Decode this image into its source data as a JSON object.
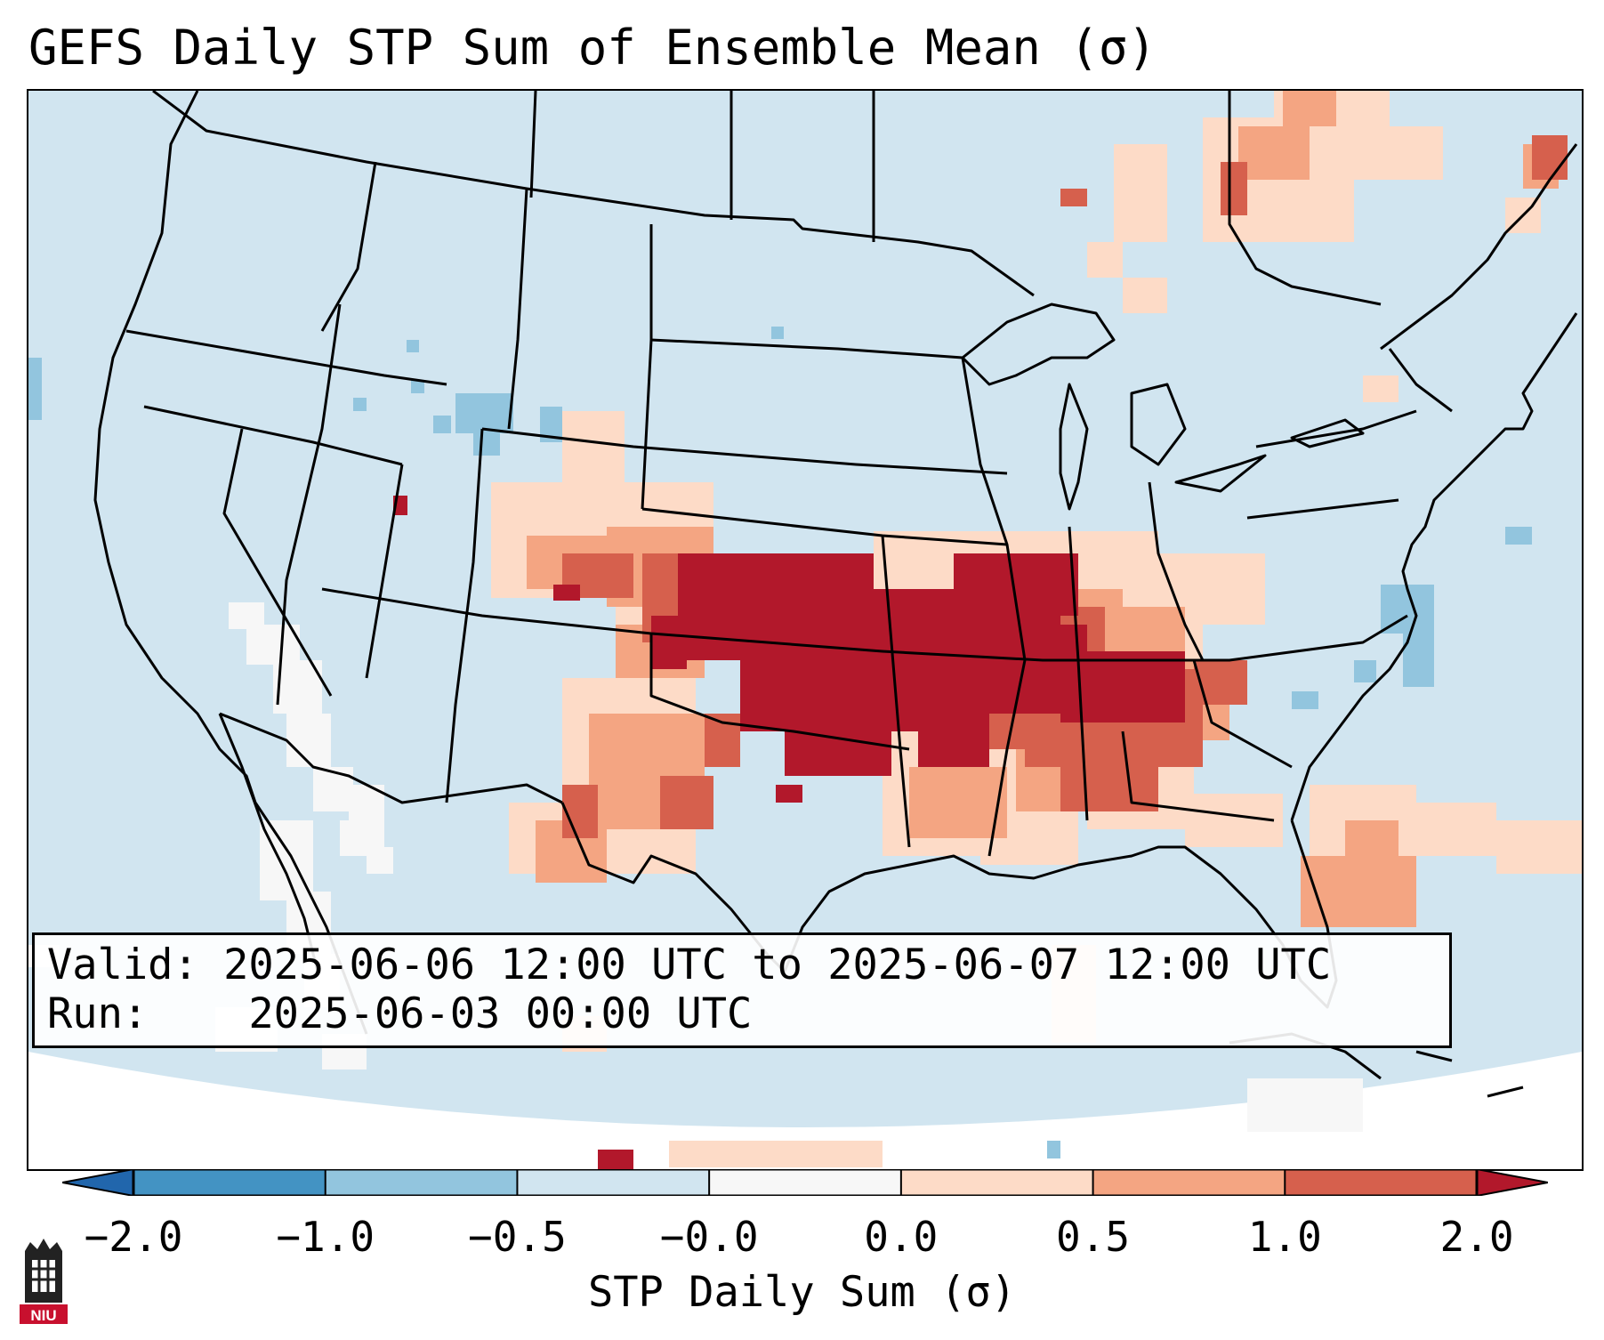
{
  "title": "GEFS Daily STP Sum of Ensemble Mean (σ)",
  "info": {
    "valid_label": "Valid:",
    "valid_value": "2025-06-06 12:00 UTC to 2025-06-07 12:00 UTC",
    "run_label": "Run:",
    "run_value": "2025-06-03 00:00 UTC"
  },
  "colorbar": {
    "label": "STP Daily Sum (σ)",
    "ticks": [
      "−2.0",
      "−1.0",
      "−0.5",
      "−0.0",
      "0.0",
      "0.5",
      "1.0",
      "2.0"
    ],
    "colors": [
      "#2166ac",
      "#4393c3",
      "#92c5de",
      "#d1e5f0",
      "#f7f7f7",
      "#fddbc7",
      "#f4a582",
      "#d6604d",
      "#b2182b"
    ],
    "extend": "both"
  },
  "map": {
    "projection": "lambert-conformal",
    "region": "CONUS",
    "background_color": "#d1e5f0",
    "max_anomaly_region": "Kansas / Missouri / Tennessee Valley"
  },
  "logo": {
    "text": "NIU",
    "icon": "university-tower-icon",
    "color": "#c8102e"
  }
}
